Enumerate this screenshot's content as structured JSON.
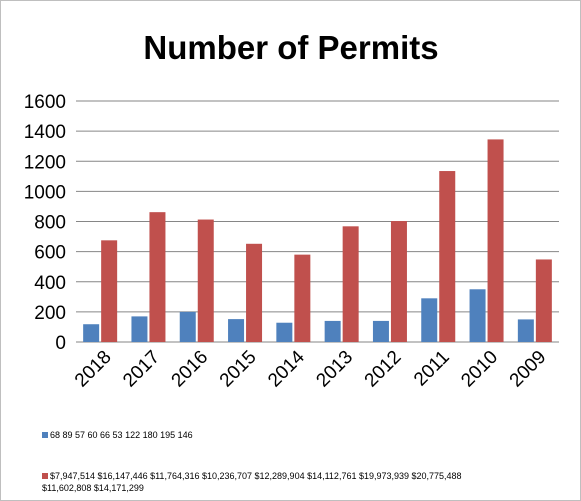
{
  "chart_data": {
    "type": "bar",
    "title": "Number of Permits",
    "xlabel": "",
    "ylabel": "",
    "categories": [
      "2018",
      "2017",
      "2016",
      "2015",
      "2014",
      "2013",
      "2012",
      "2011",
      "2010",
      "2009"
    ],
    "ylim": [
      0,
      1600
    ],
    "yticks": [
      0,
      200,
      400,
      600,
      800,
      1000,
      1200,
      1400,
      1600
    ],
    "grid": true,
    "legend_position": "bottom",
    "series": [
      {
        "name": "68 89 57 60 66 53 122 180 195 146",
        "color": "#4f81bd",
        "values": [
          118,
          170,
          200,
          152,
          128,
          140,
          140,
          290,
          350,
          150
        ]
      },
      {
        "name": "$7,947,514 $16,147,446 $11,764,316 $10,236,707 $12,289,904 $14,112,761 $19,973,939 $20,775,488 $11,602,808 $14,171,299",
        "name_lines": [
          "$7,947,514 $16,147,446 $11,764,316 $10,236,707 $12,289,904 $14,112,761 $19,973,939 $20,775,488",
          "$11,602,808 $14,171,299"
        ],
        "color": "#c0504d",
        "values": [
          675,
          862,
          813,
          652,
          580,
          768,
          803,
          1135,
          1345,
          548
        ]
      }
    ]
  }
}
